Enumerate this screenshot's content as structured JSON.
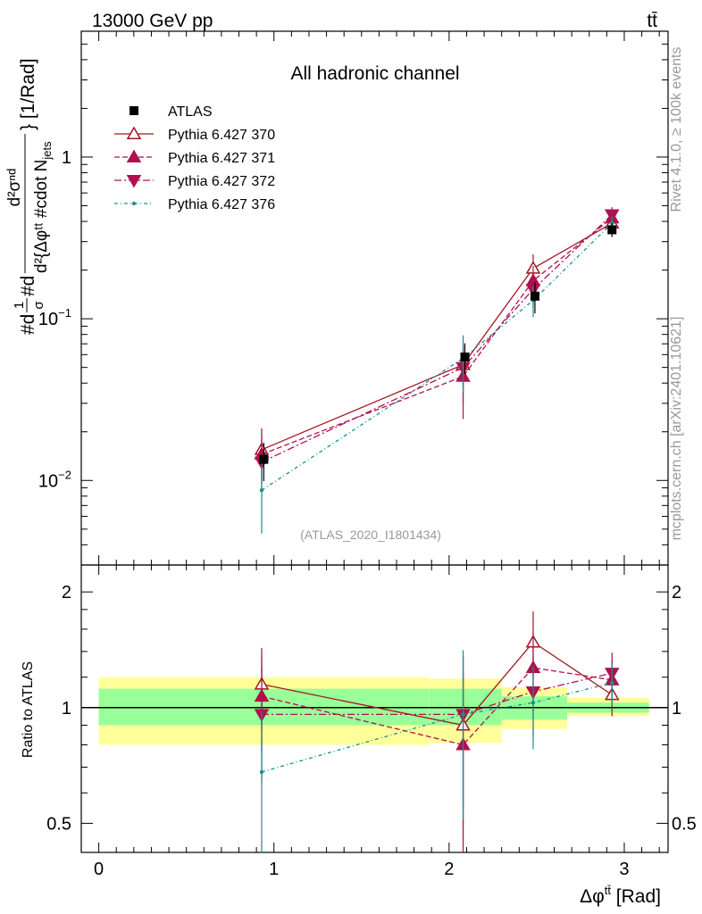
{
  "header": {
    "left_label": "13000 GeV pp",
    "right_label": "tt̄"
  },
  "side_labels": {
    "rivet": "Rivet 4.1.0, ≥ 100k events",
    "mcplots": "mcplots.cern.ch [arXiv:2401.10621]"
  },
  "chart_data": {
    "type": "line",
    "title": "All hadronic channel",
    "analysis_tag": "(ATLAS_2020_I1801434)",
    "xlabel": "Δφ^{tt̄} [Rad]",
    "ylabel": "#d¹/σ#d d²σ/d²{Δφ^{tt̄} #cdot N_jets} [1/Rad]",
    "ylabel_parts": {
      "prefix": "#d",
      "frac1_num": "1",
      "frac1_den": "σ",
      "mid": "#d",
      "frac2_num": "d²σⁿᵈ",
      "frac2_den": "d²{Δφᵗᵗ #cdot N",
      "frac2_den_sub": "jets",
      "suffix": "} [1/Rad]"
    },
    "ratio_ylabel": "Ratio to ATLAS",
    "xlim": [
      -0.1,
      3.25
    ],
    "ylim": [
      0.003,
      6.0
    ],
    "yscale": "log",
    "ratio_ylim": [
      0.42,
      2.35
    ],
    "x_ticks": [
      "0",
      "1",
      "2",
      "3"
    ],
    "y_ticks": [
      {
        "value": 1,
        "base": "1",
        "exp": ""
      },
      {
        "value": 0.1,
        "base": "10",
        "exp": "−1"
      },
      {
        "value": 0.01,
        "base": "10",
        "exp": "−2"
      }
    ],
    "ratio_ticks": [
      "0.5",
      "1",
      "2"
    ],
    "legend_position": "top-left",
    "data": {
      "name": "ATLAS",
      "color": "#000000",
      "bins": [
        [
          0.0,
          1.885
        ],
        [
          1.885,
          2.3
        ],
        [
          2.3,
          2.675
        ],
        [
          2.675,
          3.14159
        ]
      ],
      "x": [
        0.942,
        2.09,
        2.49,
        2.93
      ],
      "y": [
        0.0135,
        0.058,
        0.138,
        0.355
      ],
      "yerr": [
        0.0036,
        0.0125,
        0.03,
        0.035
      ],
      "band_inner": [
        [
          0.9,
          1.12
        ],
        [
          0.9,
          1.12
        ],
        [
          0.93,
          1.07
        ],
        [
          0.97,
          1.03
        ]
      ],
      "band_outer": [
        [
          0.8,
          1.2
        ],
        [
          0.81,
          1.19
        ],
        [
          0.88,
          1.13
        ],
        [
          0.95,
          1.06
        ]
      ]
    },
    "series": [
      {
        "name": "Pythia 6.427 370",
        "color": "#a0181f",
        "dash": "",
        "marker": "triangle-up-open",
        "x": [
          0.93,
          2.08,
          2.48,
          2.93
        ],
        "y": [
          0.0155,
          0.052,
          0.205,
          0.39
        ],
        "yerr": [
          0.0055,
          0.015,
          0.045,
          0.04
        ],
        "ratio": [
          1.15,
          0.9,
          1.48,
          1.08
        ],
        "ratio_err": [
          0.28,
          0.45,
          0.3,
          0.13
        ]
      },
      {
        "name": "Pythia 6.427 371",
        "color": "#b01050",
        "dash": "6,3",
        "marker": "triangle-up",
        "x": [
          0.93,
          2.08,
          2.48,
          2.93
        ],
        "y": [
          0.0145,
          0.044,
          0.172,
          0.42
        ],
        "yerr": [
          0.0048,
          0.02,
          0.04,
          0.045
        ],
        "ratio": [
          1.07,
          0.8,
          1.27,
          1.18
        ],
        "ratio_err": [
          0.3,
          0.42,
          0.3,
          0.15
        ]
      },
      {
        "name": "Pythia 6.427 372",
        "color": "#b01050",
        "dash": "8,3,2,3",
        "marker": "triangle-down",
        "x": [
          0.93,
          2.08,
          2.48,
          2.93
        ],
        "y": [
          0.013,
          0.05,
          0.152,
          0.44
        ],
        "yerr": [
          0.0045,
          0.02,
          0.035,
          0.05
        ],
        "ratio": [
          0.96,
          0.96,
          1.1,
          1.23
        ],
        "ratio_err": [
          0.32,
          0.4,
          0.26,
          0.16
        ]
      },
      {
        "name": "Pythia 6.427 376",
        "color": "#189090",
        "dash": "4,3,1,3",
        "marker": "dot",
        "x": [
          0.93,
          2.08,
          2.48,
          2.93
        ],
        "y": [
          0.0087,
          0.057,
          0.13,
          0.39
        ],
        "yerr": [
          0.004,
          0.022,
          0.028,
          0.04
        ],
        "ratio": [
          0.68,
          0.96,
          1.03,
          1.16
        ],
        "ratio_err": [
          0.3,
          0.45,
          0.25,
          0.15
        ]
      }
    ]
  }
}
